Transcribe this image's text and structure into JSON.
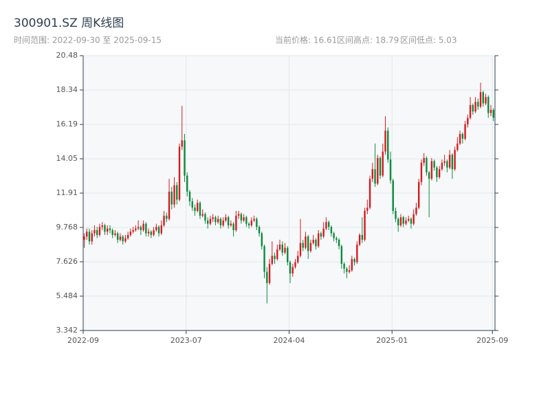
{
  "chart_data": {
    "type": "candlestick",
    "title": "300901.SZ 周K线图",
    "subtitle": "时间范围: 2022-09-30 至 2025-09-15",
    "stats": [
      "当前价格: 16.61",
      "区间高点: 18.79",
      "区间低点: 5.03"
    ],
    "up_color": "#d7191c",
    "down_color": "#0a8a3a",
    "grid": true,
    "xlim": [
      0,
      160
    ],
    "xticks": [
      {
        "value": 0,
        "label": "2022-09"
      },
      {
        "value": 40,
        "label": "2023-07"
      },
      {
        "value": 80,
        "label": "2024-04"
      },
      {
        "value": 120,
        "label": "2025-01"
      },
      {
        "value": 159,
        "label": "2025-09"
      }
    ],
    "ylim": [
      3.342,
      20.48
    ],
    "yticks": [
      3.342,
      5.484,
      7.626,
      9.768,
      11.91,
      14.05,
      16.19,
      18.34,
      20.48
    ],
    "ohlc": [
      [
        9.0,
        9.4,
        8.5,
        9.2
      ],
      [
        9.2,
        9.7,
        9.0,
        9.5
      ],
      [
        9.5,
        9.7,
        8.7,
        8.9
      ],
      [
        8.9,
        9.6,
        8.7,
        9.4
      ],
      [
        9.4,
        9.9,
        9.2,
        9.6
      ],
      [
        9.6,
        9.8,
        9.1,
        9.3
      ],
      [
        9.3,
        10.0,
        9.2,
        9.8
      ],
      [
        9.8,
        10.1,
        9.6,
        9.9
      ],
      [
        9.9,
        10.0,
        9.3,
        9.5
      ],
      [
        9.5,
        9.9,
        9.3,
        9.7
      ],
      [
        9.7,
        9.9,
        9.4,
        9.6
      ],
      [
        9.6,
        9.7,
        9.1,
        9.3
      ],
      [
        9.3,
        9.6,
        9.2,
        9.4
      ],
      [
        9.4,
        9.5,
        8.8,
        9.0
      ],
      [
        9.0,
        9.4,
        8.9,
        9.2
      ],
      [
        9.2,
        9.3,
        8.7,
        8.9
      ],
      [
        8.9,
        9.3,
        8.8,
        9.1
      ],
      [
        9.1,
        9.5,
        9.0,
        9.3
      ],
      [
        9.3,
        9.7,
        9.2,
        9.5
      ],
      [
        9.5,
        9.8,
        9.4,
        9.6
      ],
      [
        9.6,
        9.9,
        9.5,
        9.7
      ],
      [
        9.7,
        10.2,
        9.6,
        9.8
      ],
      [
        9.8,
        9.9,
        9.3,
        9.6
      ],
      [
        9.6,
        10.2,
        9.5,
        10.0
      ],
      [
        10.0,
        10.1,
        9.2,
        9.4
      ],
      [
        9.4,
        9.7,
        9.2,
        9.5
      ],
      [
        9.5,
        9.6,
        9.1,
        9.3
      ],
      [
        9.3,
        9.8,
        9.2,
        9.6
      ],
      [
        9.6,
        10.0,
        9.5,
        9.8
      ],
      [
        9.8,
        9.9,
        9.2,
        9.4
      ],
      [
        9.4,
        10.2,
        9.3,
        9.9
      ],
      [
        9.9,
        10.8,
        9.8,
        10.5
      ],
      [
        10.5,
        10.7,
        10.1,
        10.3
      ],
      [
        10.3,
        12.8,
        10.2,
        12.0
      ],
      [
        12.0,
        12.3,
        10.9,
        11.2
      ],
      [
        11.2,
        12.9,
        11.0,
        12.4
      ],
      [
        12.4,
        12.6,
        11.2,
        11.5
      ],
      [
        11.5,
        15.0,
        11.4,
        14.8
      ],
      [
        14.8,
        17.35,
        14.6,
        15.2
      ],
      [
        15.2,
        15.6,
        12.6,
        13.0
      ],
      [
        13.0,
        13.2,
        11.7,
        12.0
      ],
      [
        12.0,
        12.1,
        11.1,
        11.4
      ],
      [
        11.4,
        11.6,
        10.8,
        11.0
      ],
      [
        11.0,
        11.2,
        10.5,
        10.8
      ],
      [
        10.8,
        11.5,
        10.7,
        11.3
      ],
      [
        11.3,
        11.4,
        10.3,
        10.5
      ],
      [
        10.5,
        10.9,
        10.4,
        10.6
      ],
      [
        10.6,
        10.7,
        10.0,
        10.2
      ],
      [
        10.2,
        10.4,
        9.7,
        10.0
      ],
      [
        10.0,
        10.5,
        9.9,
        10.3
      ],
      [
        10.3,
        10.6,
        10.1,
        10.4
      ],
      [
        10.4,
        10.5,
        9.9,
        10.1
      ],
      [
        10.1,
        10.5,
        10.0,
        10.3
      ],
      [
        10.3,
        10.4,
        9.7,
        9.9
      ],
      [
        9.9,
        10.4,
        9.8,
        10.2
      ],
      [
        10.2,
        10.6,
        10.1,
        10.4
      ],
      [
        10.4,
        10.5,
        9.7,
        9.9
      ],
      [
        9.9,
        10.2,
        9.8,
        10.0
      ],
      [
        10.0,
        10.1,
        9.2,
        9.6
      ],
      [
        9.6,
        10.8,
        9.5,
        10.5
      ],
      [
        10.5,
        10.8,
        10.3,
        10.6
      ],
      [
        10.6,
        10.7,
        10.0,
        10.2
      ],
      [
        10.2,
        10.6,
        10.1,
        10.4
      ],
      [
        10.4,
        10.5,
        9.8,
        10.0
      ],
      [
        10.0,
        10.1,
        9.7,
        9.9
      ],
      [
        9.9,
        10.4,
        9.8,
        10.2
      ],
      [
        10.2,
        10.5,
        10.1,
        10.3
      ],
      [
        10.3,
        10.4,
        9.6,
        9.8
      ],
      [
        9.8,
        9.9,
        9.2,
        9.4
      ],
      [
        9.4,
        9.5,
        8.4,
        8.6
      ],
      [
        8.6,
        8.7,
        6.6,
        7.0
      ],
      [
        7.0,
        7.3,
        5.03,
        6.3
      ],
      [
        6.3,
        7.8,
        6.2,
        7.5
      ],
      [
        7.5,
        8.9,
        7.4,
        8.0
      ],
      [
        8.0,
        8.2,
        7.5,
        7.8
      ],
      [
        7.8,
        8.7,
        7.7,
        8.4
      ],
      [
        8.4,
        9.0,
        8.3,
        8.7
      ],
      [
        8.7,
        8.9,
        8.0,
        8.2
      ],
      [
        8.2,
        8.8,
        8.1,
        8.5
      ],
      [
        8.5,
        8.6,
        7.4,
        7.6
      ],
      [
        7.6,
        7.7,
        6.3,
        6.9
      ],
      [
        6.9,
        7.5,
        6.7,
        7.3
      ],
      [
        7.3,
        7.8,
        7.2,
        7.6
      ],
      [
        7.6,
        8.3,
        7.5,
        8.0
      ],
      [
        8.0,
        10.3,
        7.9,
        8.8
      ],
      [
        8.8,
        9.0,
        8.3,
        8.5
      ],
      [
        8.5,
        9.5,
        8.4,
        9.2
      ],
      [
        9.2,
        9.3,
        7.8,
        8.3
      ],
      [
        8.3,
        9.0,
        8.2,
        8.8
      ],
      [
        8.8,
        9.3,
        8.7,
        9.0
      ],
      [
        9.0,
        9.1,
        8.4,
        8.6
      ],
      [
        8.6,
        9.6,
        8.5,
        9.4
      ],
      [
        9.4,
        9.5,
        9.0,
        9.2
      ],
      [
        9.2,
        10.1,
        9.1,
        9.7
      ],
      [
        9.7,
        10.4,
        9.6,
        10.1
      ],
      [
        10.1,
        10.2,
        9.6,
        9.8
      ],
      [
        9.8,
        9.9,
        9.2,
        9.4
      ],
      [
        9.4,
        9.5,
        8.9,
        9.1
      ],
      [
        9.1,
        9.2,
        8.8,
        9.0
      ],
      [
        9.0,
        9.1,
        8.4,
        8.6
      ],
      [
        8.6,
        8.7,
        7.2,
        7.5
      ],
      [
        7.5,
        7.6,
        6.9,
        7.2
      ],
      [
        7.2,
        7.3,
        6.6,
        7.0
      ],
      [
        7.0,
        7.4,
        6.9,
        7.1
      ],
      [
        7.1,
        8.0,
        7.0,
        7.8
      ],
      [
        7.8,
        7.9,
        7.4,
        7.6
      ],
      [
        7.6,
        8.9,
        7.5,
        8.7
      ],
      [
        8.7,
        9.4,
        8.6,
        9.3
      ],
      [
        9.3,
        10.4,
        8.8,
        9.0
      ],
      [
        9.0,
        11.0,
        8.9,
        10.8
      ],
      [
        10.8,
        11.5,
        10.6,
        11.0
      ],
      [
        11.0,
        13.0,
        10.9,
        12.8
      ],
      [
        12.8,
        13.8,
        12.6,
        13.4
      ],
      [
        13.4,
        15.0,
        12.3,
        12.5
      ],
      [
        12.5,
        14.3,
        12.4,
        14.1
      ],
      [
        14.1,
        14.2,
        12.8,
        13.0
      ],
      [
        13.0,
        15.0,
        12.9,
        14.5
      ],
      [
        14.5,
        16.7,
        14.3,
        15.8
      ],
      [
        15.8,
        16.0,
        13.8,
        14.0
      ],
      [
        14.0,
        14.5,
        12.5,
        12.7
      ],
      [
        12.7,
        12.8,
        10.6,
        10.8
      ],
      [
        10.8,
        11.0,
        10.1,
        10.3
      ],
      [
        10.3,
        10.4,
        9.5,
        9.9
      ],
      [
        9.9,
        10.6,
        9.8,
        10.4
      ],
      [
        10.4,
        10.5,
        9.8,
        10.0
      ],
      [
        10.0,
        10.4,
        9.9,
        10.2
      ],
      [
        10.2,
        10.5,
        10.1,
        10.3
      ],
      [
        10.3,
        10.4,
        9.7,
        10.0
      ],
      [
        10.0,
        10.9,
        9.9,
        10.6
      ],
      [
        10.6,
        11.3,
        10.5,
        11.0
      ],
      [
        11.0,
        12.8,
        10.9,
        12.6
      ],
      [
        12.6,
        14.0,
        12.4,
        13.8
      ],
      [
        13.8,
        14.4,
        13.6,
        14.1
      ],
      [
        14.1,
        14.2,
        13.0,
        13.2
      ],
      [
        13.2,
        13.3,
        10.4,
        12.8
      ],
      [
        12.8,
        14.1,
        12.7,
        13.9
      ],
      [
        13.9,
        14.0,
        13.3,
        13.5
      ],
      [
        13.5,
        13.6,
        12.6,
        12.9
      ],
      [
        12.9,
        13.6,
        12.8,
        13.4
      ],
      [
        13.4,
        14.0,
        13.3,
        13.8
      ],
      [
        13.8,
        14.3,
        13.6,
        13.9
      ],
      [
        13.9,
        14.0,
        13.2,
        13.5
      ],
      [
        13.5,
        14.6,
        13.4,
        14.3
      ],
      [
        14.3,
        14.4,
        12.8,
        13.4
      ],
      [
        13.4,
        14.8,
        13.3,
        14.6
      ],
      [
        14.6,
        15.4,
        14.5,
        15.0
      ],
      [
        15.0,
        15.8,
        14.9,
        15.6
      ],
      [
        15.6,
        15.7,
        15.0,
        15.3
      ],
      [
        15.3,
        16.4,
        15.2,
        16.2
      ],
      [
        16.2,
        16.8,
        16.0,
        16.6
      ],
      [
        16.6,
        17.9,
        16.5,
        17.4
      ],
      [
        17.4,
        17.5,
        16.8,
        17.0
      ],
      [
        17.0,
        17.9,
        16.9,
        17.6
      ],
      [
        17.6,
        17.8,
        17.1,
        17.3
      ],
      [
        17.3,
        18.79,
        17.2,
        18.2
      ],
      [
        18.2,
        18.3,
        17.3,
        17.5
      ],
      [
        17.5,
        18.1,
        17.4,
        17.9
      ],
      [
        17.9,
        18.0,
        16.6,
        16.9
      ],
      [
        16.9,
        17.4,
        16.7,
        17.1
      ],
      [
        17.1,
        17.2,
        16.4,
        16.61
      ]
    ]
  }
}
